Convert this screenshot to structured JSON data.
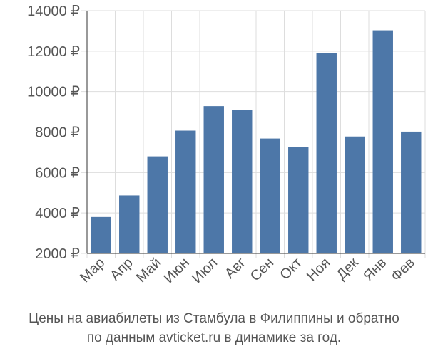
{
  "colors": {
    "bar": "#4d77a8",
    "grid": "#dddddd",
    "axis": "#333333",
    "text": "#555555"
  },
  "caption": {
    "line1": "Цены на авиабилеты из Стамбула в Филиппины и обратно",
    "line2": "по данным avticket.ru в динамике за год."
  },
  "chart_data": {
    "type": "bar",
    "categories": [
      "Мар",
      "Апр",
      "Май",
      "Июн",
      "Июл",
      "Авг",
      "Сен",
      "Окт",
      "Ноя",
      "Дек",
      "Янв",
      "Фев"
    ],
    "values": [
      3800,
      4870,
      6800,
      8070,
      9280,
      9080,
      7680,
      7270,
      11920,
      7780,
      13030,
      8020
    ],
    "ylim": [
      2000,
      14000
    ],
    "yticks": [
      2000,
      4000,
      6000,
      8000,
      10000,
      12000,
      14000
    ],
    "ytick_labels": [
      "2000 ₽",
      "4000 ₽",
      "6000 ₽",
      "8000 ₽",
      "10000 ₽",
      "12000 ₽",
      "14000 ₽"
    ],
    "grid": true
  }
}
